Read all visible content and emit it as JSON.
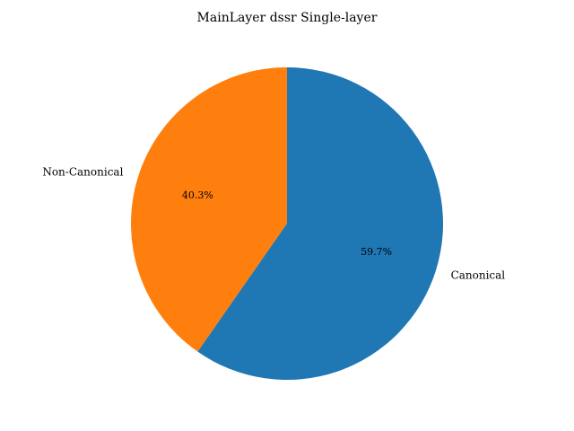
{
  "chart_data": {
    "type": "pie",
    "title": "MainLayer dssr Single-layer",
    "categories": [
      "Non-Canonical",
      "Canonical"
    ],
    "values": [
      40.3,
      59.7
    ],
    "value_labels": [
      "40.3%",
      "59.7%"
    ],
    "colors": [
      "#ff7f0e",
      "#1f77b4"
    ],
    "start_angle_deg": 90,
    "direction": "counterclockwise",
    "legend": "none"
  }
}
